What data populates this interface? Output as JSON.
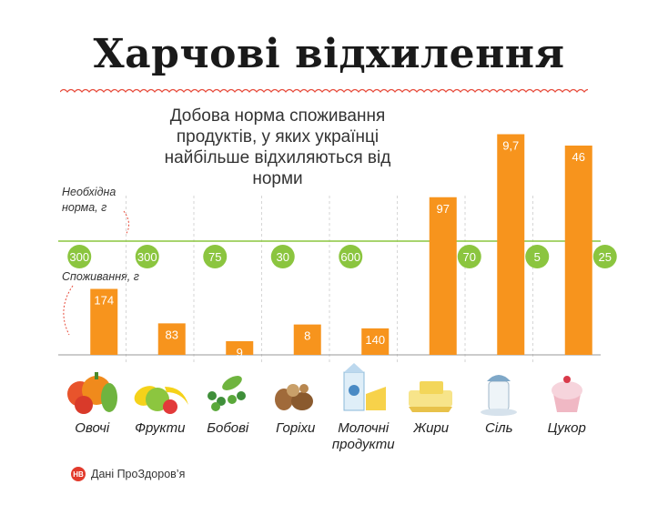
{
  "title": "Харчові відхилення",
  "subtitle": "Добова норма споживання продуктів, у яких українці найбільше відхиляються від норми",
  "labels": {
    "norm": "Необхідна норма, г",
    "consumption": "Споживання, г"
  },
  "source": {
    "logo": "НВ",
    "text": "Дані ПроЗдоров’я"
  },
  "colors": {
    "bar": "#F7941D",
    "norm_circle": "#8BC53F",
    "norm_line": "#8BC53F",
    "baseline": "#9a9a9a",
    "wave": "#E74C3C"
  },
  "chart_data": {
    "type": "bar",
    "categories": [
      "Овочі",
      "Фрукти",
      "Бобові",
      "Горіхи",
      "Молочні продукти",
      "Жири",
      "Сіль",
      "Цукор"
    ],
    "series": [
      {
        "name": "Споживання, г",
        "values": [
          174,
          83,
          9,
          8,
          140,
          97,
          9.7,
          46
        ],
        "value_labels": [
          "174",
          "83",
          "9",
          "8",
          "140",
          "97",
          "9,7",
          "46"
        ]
      },
      {
        "name": "Необхідна норма, г",
        "values": [
          300,
          300,
          75,
          30,
          600,
          70,
          5,
          25
        ],
        "value_labels": [
          "300",
          "300",
          "75",
          "30",
          "600",
          "70",
          "5",
          "25"
        ]
      }
    ],
    "ratios": [
      0.58,
      0.277,
      0.12,
      0.267,
      0.233,
      1.386,
      1.94,
      1.84
    ],
    "ylim": [
      0,
      2.0
    ],
    "reference": "norm = 1",
    "icons": [
      "vegetables-icon",
      "fruits-icon",
      "beans-icon",
      "nuts-icon",
      "dairy-icon",
      "fats-icon",
      "salt-icon",
      "sugar-icon"
    ]
  }
}
